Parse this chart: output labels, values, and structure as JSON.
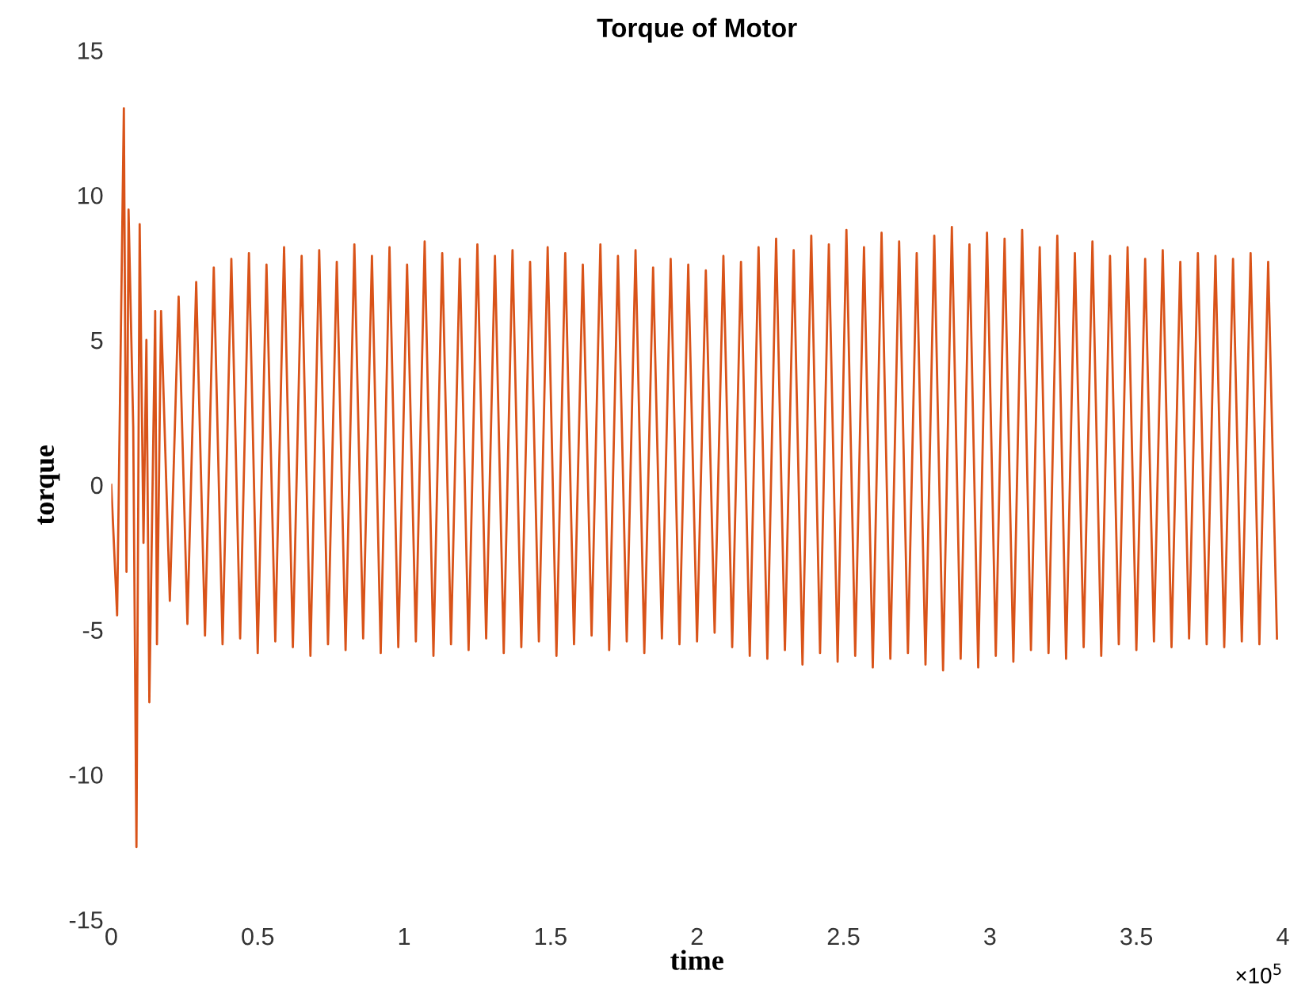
{
  "chart_data": {
    "type": "line",
    "title": "Torque of Motor",
    "xlabel": "time",
    "ylabel": "torque",
    "annotations": [
      "×10$^{5}$"
    ],
    "xlim": [
      0,
      4
    ],
    "ylim": [
      -15,
      15
    ],
    "xticks": [
      0,
      0.5,
      1,
      1.5,
      2,
      2.5,
      3,
      3.5,
      4
    ],
    "yticks": [
      -15,
      -10,
      -5,
      0,
      5,
      10,
      15
    ],
    "grid": false,
    "marker": "none",
    "line_style": "solid",
    "series": [
      {
        "color": "#d95319",
        "x": [
          0,
          0.02,
          0.043,
          0.052,
          0.059,
          0.075,
          0.086,
          0.097,
          0.11,
          0.12,
          0.13,
          0.15,
          0.156,
          0.17,
          0.2,
          0.23,
          0.26,
          0.29,
          0.32,
          0.35,
          0.38,
          0.41,
          0.44,
          0.47,
          0.5,
          0.53,
          0.56,
          0.59,
          0.62,
          0.65,
          0.68,
          0.71,
          0.74,
          0.77,
          0.8,
          0.83,
          0.86,
          0.89,
          0.92,
          0.95,
          0.98,
          1.01,
          1.04,
          1.07,
          1.1,
          1.13,
          1.16,
          1.19,
          1.22,
          1.25,
          1.28,
          1.31,
          1.34,
          1.37,
          1.4,
          1.43,
          1.46,
          1.49,
          1.52,
          1.55,
          1.58,
          1.61,
          1.64,
          1.67,
          1.7,
          1.73,
          1.76,
          1.79,
          1.82,
          1.85,
          1.88,
          1.91,
          1.94,
          1.97,
          2.0,
          2.03,
          2.06,
          2.09,
          2.12,
          2.15,
          2.18,
          2.21,
          2.24,
          2.27,
          2.3,
          2.33,
          2.36,
          2.39,
          2.42,
          2.45,
          2.48,
          2.51,
          2.54,
          2.57,
          2.6,
          2.63,
          2.66,
          2.69,
          2.72,
          2.75,
          2.78,
          2.81,
          2.84,
          2.87,
          2.9,
          2.93,
          2.96,
          2.99,
          3.02,
          3.05,
          3.08,
          3.11,
          3.14,
          3.17,
          3.2,
          3.23,
          3.26,
          3.29,
          3.32,
          3.35,
          3.38,
          3.41,
          3.44,
          3.47,
          3.5,
          3.53,
          3.56,
          3.59,
          3.62,
          3.65,
          3.68,
          3.71,
          3.74,
          3.77,
          3.8,
          3.83,
          3.86,
          3.89,
          3.92,
          3.95,
          3.98
        ],
        "values": [
          0,
          -4.5,
          13,
          -3,
          9.5,
          2,
          -12.5,
          9,
          -2,
          5,
          -7.5,
          6,
          -5.5,
          6.0,
          -4.0,
          6.5,
          -4.8,
          7.0,
          -5.2,
          7.5,
          -5.5,
          7.8,
          -5.3,
          8.0,
          -5.8,
          7.6,
          -5.4,
          8.2,
          -5.6,
          7.9,
          -5.9,
          8.1,
          -5.5,
          7.7,
          -5.7,
          8.3,
          -5.3,
          7.9,
          -5.8,
          8.2,
          -5.6,
          7.6,
          -5.4,
          8.4,
          -5.9,
          8.0,
          -5.5,
          7.8,
          -5.7,
          8.3,
          -5.3,
          7.9,
          -5.8,
          8.1,
          -5.6,
          7.7,
          -5.4,
          8.2,
          -5.9,
          8.0,
          -5.5,
          7.6,
          -5.2,
          8.3,
          -5.7,
          7.9,
          -5.4,
          8.1,
          -5.8,
          7.5,
          -5.3,
          7.8,
          -5.5,
          7.6,
          -5.4,
          7.4,
          -5.1,
          7.9,
          -5.6,
          7.7,
          -5.9,
          8.2,
          -6.0,
          8.5,
          -5.7,
          8.1,
          -6.2,
          8.6,
          -5.8,
          8.3,
          -6.1,
          8.8,
          -5.9,
          8.2,
          -6.3,
          8.7,
          -6.0,
          8.4,
          -5.8,
          8.0,
          -6.2,
          8.6,
          -6.4,
          8.9,
          -6.0,
          8.3,
          -6.3,
          8.7,
          -5.9,
          8.5,
          -6.1,
          8.8,
          -5.7,
          8.2,
          -5.8,
          8.6,
          -6.0,
          8.0,
          -5.6,
          8.4,
          -5.9,
          7.9,
          -5.5,
          8.2,
          -5.7,
          7.8,
          -5.4,
          8.1,
          -5.6,
          7.7,
          -5.3,
          8.0,
          -5.5,
          7.9,
          -5.6,
          7.8,
          -5.4,
          8.0,
          -5.5,
          7.7,
          -5.3
        ]
      }
    ]
  }
}
